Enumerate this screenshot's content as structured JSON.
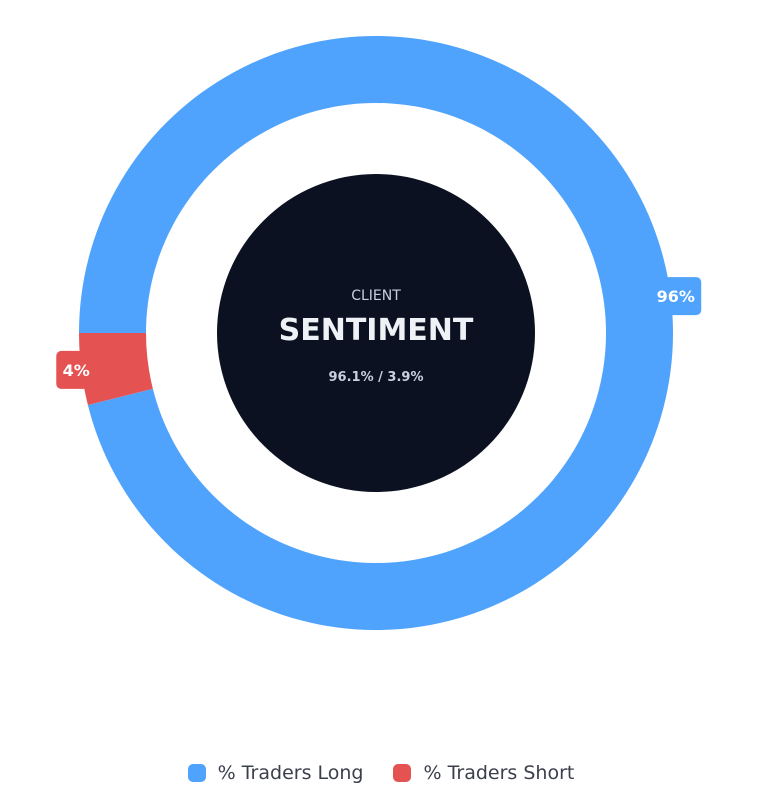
{
  "chart_data": {
    "type": "pie",
    "variant": "donut",
    "categories": [
      "% Traders Long",
      "% Traders Short"
    ],
    "values": [
      96.1,
      3.9
    ],
    "data_labels": [
      "96%",
      "4%"
    ],
    "colors": [
      "#4FA3FD",
      "#E55252"
    ],
    "center": {
      "kicker": "CLIENT",
      "title": "SENTIMENT",
      "subtitle": "96.1% / 3.9%"
    },
    "legend_position": "bottom-center",
    "center_color": "#0B1120"
  }
}
